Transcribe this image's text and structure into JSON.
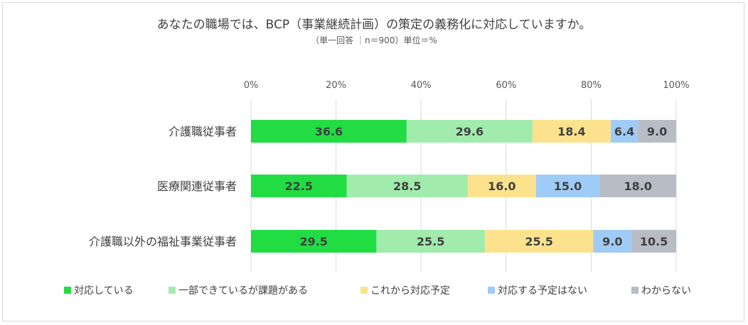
{
  "chart_data": {
    "type": "bar",
    "orientation": "horizontal",
    "stacked": true,
    "title": "あなたの職場では、BCP（事業継続計画）の策定の義務化に対応していますか。",
    "subtitle": "（単一回答 ｜n＝900）単位＝%",
    "categories": [
      "介護職従事者",
      "医療関連従事者",
      "介護職以外の福祉事業従事者"
    ],
    "series": [
      {
        "name": "対応している",
        "color": "#21dd43",
        "values": [
          36.6,
          22.5,
          29.5
        ]
      },
      {
        "name": "一部できているが課題がある",
        "color": "#a1ecac",
        "values": [
          29.6,
          28.5,
          25.5
        ]
      },
      {
        "name": "これから対応予定",
        "color": "#fde28e",
        "values": [
          18.4,
          16.0,
          25.5
        ]
      },
      {
        "name": "対応する予定はない",
        "color": "#9fcbf7",
        "values": [
          6.4,
          15.0,
          9.0
        ]
      },
      {
        "name": "わからない",
        "color": "#b8bcc5",
        "values": [
          9.0,
          18.0,
          10.5
        ]
      }
    ],
    "data_labels": [
      [
        "36.6",
        "22.5",
        "29.5"
      ],
      [
        "29.6",
        "28.5",
        "25.5"
      ],
      [
        "18.4",
        "16.0",
        "25.5"
      ],
      [
        "6.4",
        "15.0",
        "9.0"
      ],
      [
        "9.0",
        "18.0",
        "10.5"
      ]
    ],
    "xlim": [
      0,
      100
    ],
    "xticks": [
      "0%",
      "20%",
      "40%",
      "60%",
      "80%",
      "100%"
    ],
    "xtick_values": [
      0,
      20,
      40,
      60,
      80,
      100
    ],
    "grid": true,
    "legend_position": "bottom"
  }
}
